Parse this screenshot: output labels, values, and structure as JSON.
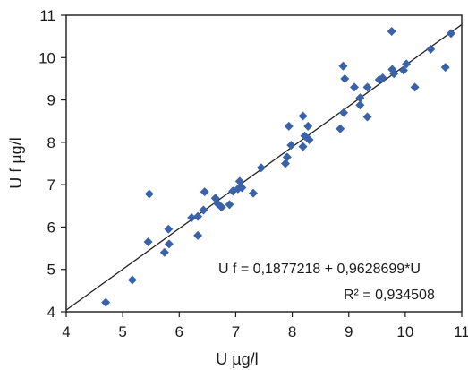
{
  "chart_data": {
    "type": "scatter",
    "xlabel": "U µg/l",
    "ylabel": "U f µg/l",
    "xlim": [
      4,
      11
    ],
    "ylim": [
      4,
      11
    ],
    "xticks": [
      "4",
      "5",
      "6",
      "7",
      "8",
      "9",
      "10",
      "11"
    ],
    "yticks": [
      "4",
      "5",
      "6",
      "7",
      "8",
      "9",
      "10",
      "11"
    ],
    "grid": false,
    "legend": "none",
    "marker": "diamond",
    "colors": {
      "marker": "#3a62a8",
      "line": "#222222",
      "axis": "#1a1a1a"
    },
    "fit_line": {
      "intercept": 0.1877218,
      "slope": 0.9628699
    },
    "annotations": {
      "equation": "U f = 0,1877218 + 0,9628699*U",
      "r2": "R² = 0,934508"
    },
    "points": [
      [
        4.7,
        4.22
      ],
      [
        5.17,
        4.75
      ],
      [
        5.45,
        5.65
      ],
      [
        5.47,
        6.78
      ],
      [
        5.74,
        5.4
      ],
      [
        5.81,
        5.95
      ],
      [
        5.82,
        5.6
      ],
      [
        6.22,
        6.22
      ],
      [
        6.33,
        5.8
      ],
      [
        6.33,
        6.25
      ],
      [
        6.43,
        6.4
      ],
      [
        6.45,
        6.83
      ],
      [
        6.64,
        6.68
      ],
      [
        6.68,
        6.55
      ],
      [
        6.75,
        6.47
      ],
      [
        6.89,
        6.53
      ],
      [
        6.95,
        6.85
      ],
      [
        7.04,
        6.9
      ],
      [
        7.07,
        7.08
      ],
      [
        7.11,
        6.93
      ],
      [
        7.31,
        6.8
      ],
      [
        7.45,
        7.4
      ],
      [
        7.88,
        7.5
      ],
      [
        7.91,
        7.65
      ],
      [
        7.94,
        8.38
      ],
      [
        7.98,
        7.93
      ],
      [
        8.19,
        8.62
      ],
      [
        8.19,
        7.9
      ],
      [
        8.22,
        8.15
      ],
      [
        8.28,
        8.38
      ],
      [
        8.3,
        8.06
      ],
      [
        8.85,
        8.32
      ],
      [
        8.9,
        9.8
      ],
      [
        8.91,
        8.7
      ],
      [
        8.93,
        9.5
      ],
      [
        9.1,
        9.3
      ],
      [
        9.2,
        9.05
      ],
      [
        9.2,
        8.88
      ],
      [
        9.33,
        9.3
      ],
      [
        9.33,
        8.6
      ],
      [
        9.54,
        9.48
      ],
      [
        9.6,
        9.52
      ],
      [
        9.76,
        10.62
      ],
      [
        9.77,
        9.72
      ],
      [
        9.8,
        9.62
      ],
      [
        9.97,
        9.7
      ],
      [
        10.02,
        9.85
      ],
      [
        10.17,
        9.3
      ],
      [
        10.45,
        10.2
      ],
      [
        10.71,
        9.77
      ],
      [
        10.81,
        10.57
      ]
    ]
  }
}
